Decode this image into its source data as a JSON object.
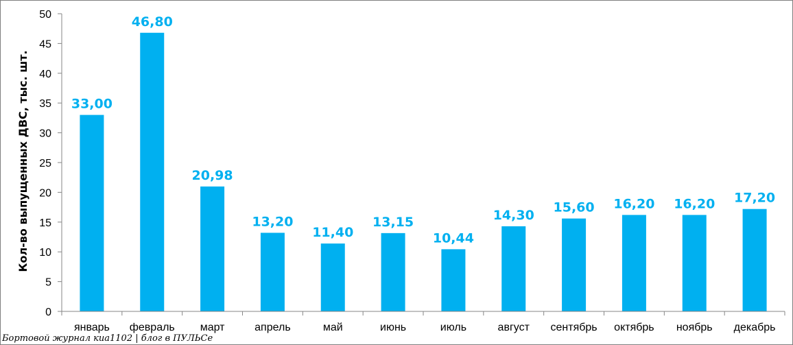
{
  "chart_data": {
    "type": "bar",
    "title": "",
    "xlabel": "",
    "ylabel": "Кол-во выпущенных ДВС, тыс. шт.",
    "ylim": [
      0,
      50
    ],
    "yticks": [
      0,
      5,
      10,
      15,
      20,
      25,
      30,
      35,
      40,
      45,
      50
    ],
    "grid": false,
    "categories": [
      "январь",
      "февраль",
      "март",
      "апрель",
      "май",
      "июнь",
      "июль",
      "август",
      "сентябрь",
      "октябрь",
      "ноябрь",
      "декабрь"
    ],
    "values": [
      33.0,
      46.8,
      20.98,
      13.2,
      11.4,
      13.15,
      10.44,
      14.3,
      15.6,
      16.2,
      16.2,
      17.2
    ],
    "data_labels": [
      "33,00",
      "46,80",
      "20,98",
      "13,20",
      "11,40",
      "13,15",
      "10,44",
      "14,30",
      "15,60",
      "16,20",
      "16,20",
      "17,20"
    ],
    "bar_color": "#00b0f0",
    "label_color": "#00b0f0",
    "axis_color": "#868686"
  },
  "watermark": "Бортовой журнал киа1102 | блог в ПУЛЬСе"
}
